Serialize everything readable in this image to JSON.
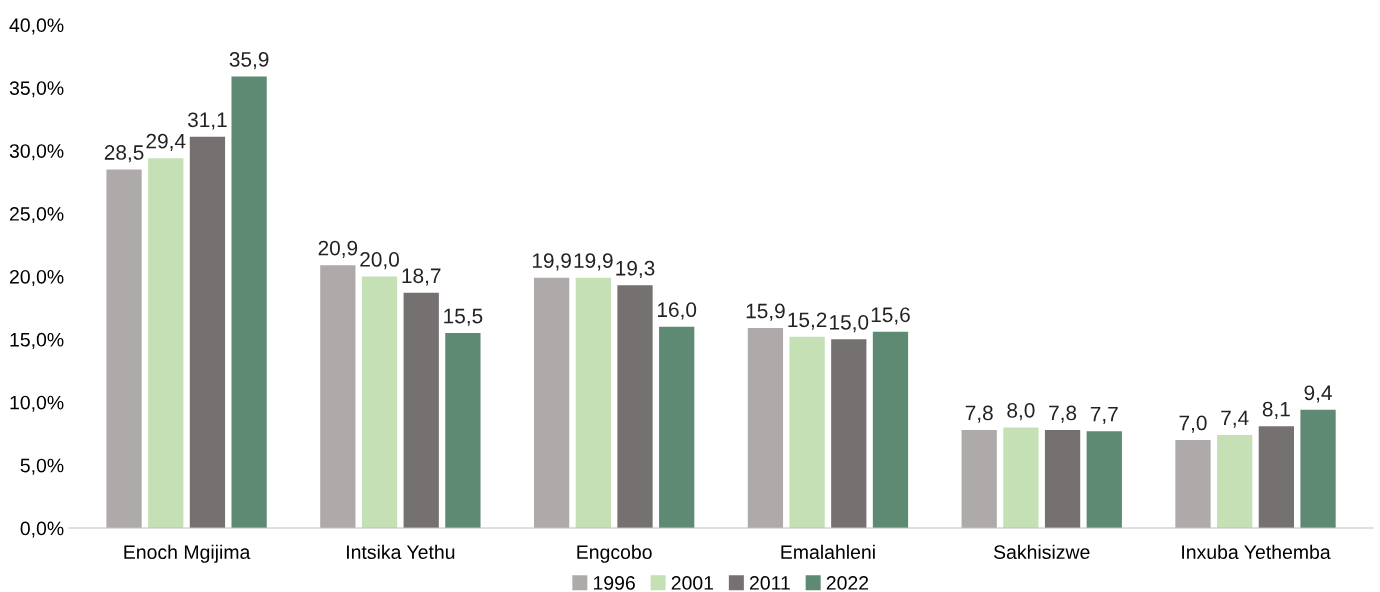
{
  "chart_data": {
    "type": "bar",
    "categories": [
      "Enoch Mgijima",
      "Intsika Yethu",
      "Engcobo",
      "Emalahleni",
      "Sakhisizwe",
      "Inxuba Yethemba"
    ],
    "series": [
      {
        "name": "1996",
        "color": "#aeaaaa",
        "values": [
          28.5,
          20.9,
          19.9,
          15.9,
          7.8,
          7.0
        ],
        "value_labels": [
          "28,5",
          "20,9",
          "19,9",
          "15,9",
          "7,8",
          "7,0"
        ]
      },
      {
        "name": "2001",
        "color": "#c5e0b4",
        "values": [
          29.4,
          20.0,
          19.9,
          15.2,
          8.0,
          7.4
        ],
        "value_labels": [
          "29,4",
          "20,0",
          "19,9",
          "15,2",
          "8,0",
          "7,4"
        ]
      },
      {
        "name": "2011",
        "color": "#767171",
        "values": [
          31.1,
          18.7,
          19.3,
          15.0,
          7.8,
          8.1
        ],
        "value_labels": [
          "31,1",
          "18,7",
          "19,3",
          "15,0",
          "7,8",
          "8,1"
        ]
      },
      {
        "name": "2022",
        "color": "#5e8a74",
        "values": [
          35.9,
          15.5,
          16.0,
          15.6,
          7.7,
          9.4
        ],
        "value_labels": [
          "35,9",
          "15,5",
          "16,0",
          "15,6",
          "7,7",
          "9,4"
        ]
      }
    ],
    "ylim": [
      0,
      40
    ],
    "yticks": [
      {
        "value": 0,
        "label": "0,0%"
      },
      {
        "value": 5,
        "label": "5,0%"
      },
      {
        "value": 10,
        "label": "10,0%"
      },
      {
        "value": 15,
        "label": "15,0%"
      },
      {
        "value": 20,
        "label": "20,0%"
      },
      {
        "value": 25,
        "label": "25,0%"
      },
      {
        "value": 30,
        "label": "30,0%"
      },
      {
        "value": 35,
        "label": "35,0%"
      },
      {
        "value": 40,
        "label": "40,0%"
      }
    ],
    "grid": false,
    "legend": "bottom"
  }
}
